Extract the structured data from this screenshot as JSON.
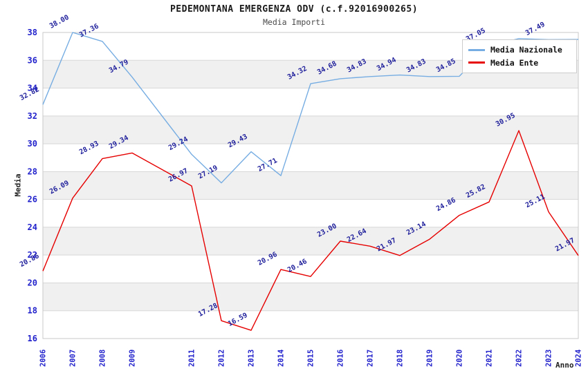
{
  "header": {
    "title": "PEDEMONTANA EMERGENZA ODV (c.f.92016900265)",
    "subtitle": "Media Importi"
  },
  "chart_data": {
    "type": "line",
    "title": "PEDEMONTANA EMERGENZA ODV (c.f.92016900265)",
    "subtitle": "Media Importi",
    "xlabel": "Anno",
    "ylabel": "Media",
    "x": [
      2006,
      2007,
      2008,
      2009,
      2011,
      2012,
      2013,
      2014,
      2015,
      2016,
      2017,
      2018,
      2019,
      2020,
      2021,
      2022,
      2023,
      2024
    ],
    "ylim": [
      16,
      38
    ],
    "ytick_step": 2,
    "yticks": [
      16,
      18,
      20,
      22,
      24,
      26,
      28,
      30,
      32,
      34,
      36,
      38
    ],
    "grid": "horizontal-bands-alternating",
    "legend_position": "top-right",
    "series": [
      {
        "name": "Media Nazionale",
        "color": "#76ade2",
        "values": [
          32.82,
          38.0,
          37.36,
          34.79,
          29.24,
          27.19,
          29.43,
          27.71,
          34.32,
          34.68,
          34.83,
          34.94,
          34.83,
          34.85,
          37.05,
          37.56,
          37.49,
          37.5
        ],
        "labels": [
          "32.82",
          "38.00",
          "37.36",
          "34.79",
          "29.24",
          "27.19",
          "29.43",
          "27.71",
          "34.32",
          "34.68",
          "34.83",
          "34.94",
          "34.83",
          "34.85",
          "37.05",
          null,
          "37.49",
          null
        ],
        "estimated_hidden_behind_legend": [
          2022,
          2024
        ]
      },
      {
        "name": "Media Ente",
        "color": "#e60000",
        "values": [
          20.85,
          26.09,
          28.93,
          29.34,
          26.97,
          17.28,
          16.59,
          20.96,
          20.46,
          23.0,
          22.64,
          21.97,
          23.14,
          24.86,
          25.82,
          30.95,
          25.11,
          21.97
        ],
        "labels": [
          "20.85",
          "26.09",
          "28.93",
          "29.34",
          "26.97",
          "17.28",
          "16.59",
          "20.96",
          "20.46",
          "23.00",
          "22.64",
          "21.97",
          "23.14",
          "24.86",
          "25.82",
          "30.95",
          "25.11",
          "21.97"
        ],
        "estimated_hidden_behind_legend": []
      }
    ]
  },
  "colors": {
    "tick_label": "#2222cc",
    "data_label": "#1f1f9c",
    "band_gray": "#f0f0f0",
    "gridline": "#d7d7d7",
    "plot_border": "#c9c9c9",
    "title_text": "#1a1a1a",
    "subtitle_text": "#4a4a4a"
  }
}
